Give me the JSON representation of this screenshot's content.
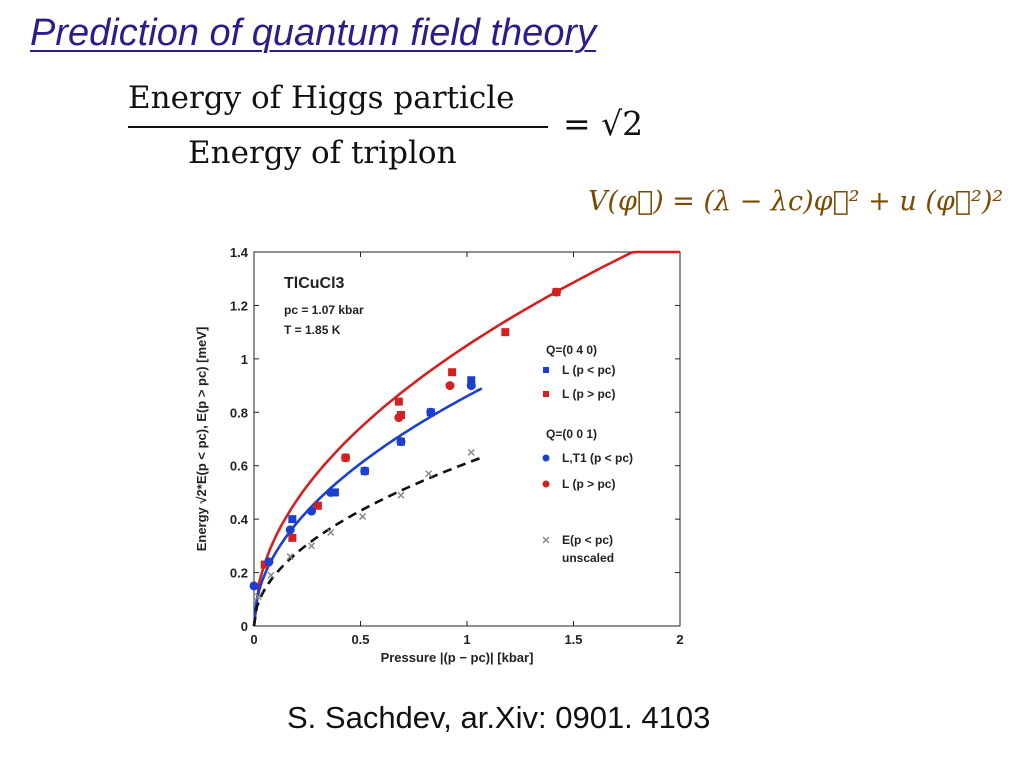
{
  "slide": {
    "title": "Prediction of quantum field theory",
    "formula_numerator": "Energy of Higgs particle",
    "formula_denominator": "Energy of triplon",
    "formula_equals": "= √2",
    "potential": "V(φ⃗) = (λ − λc)φ⃗² + u (φ⃗²)²",
    "citation": "S. Sachdev, ar.Xiv: 0901. 4103"
  },
  "chart_data": {
    "type": "scatter",
    "xlabel": "Pressure |(p − pc)| [kbar]",
    "ylabel": "Energy √2*E(p < pc), E(p > pc) [meV]",
    "xlim": [
      0,
      2
    ],
    "ylim": [
      0,
      1.4
    ],
    "x_ticks": [
      "0",
      "0.5",
      "1",
      "1.5",
      "2"
    ],
    "y_ticks": [
      "0",
      "0.2",
      "0.4",
      "0.6",
      "0.8",
      "1",
      "1.2",
      "1.4"
    ],
    "grid": false,
    "annotations": [
      "TlCuCl3",
      "pc = 1.07 kbar",
      "T = 1.85 K"
    ],
    "legend_header_1": "Q=(0 4 0)",
    "legend_header_2": "Q=(0 0 1)",
    "series": [
      {
        "name": "L (p < pc)",
        "marker": "square",
        "color": "#1a3fd1",
        "x": [
          0.18,
          0.38,
          0.52,
          0.69,
          0.83,
          1.02
        ],
        "y": [
          0.4,
          0.5,
          0.58,
          0.69,
          0.8,
          0.92
        ]
      },
      {
        "name": "L (p > pc)",
        "marker": "square",
        "color": "#d42020",
        "x": [
          0.05,
          0.18,
          0.3,
          0.43,
          0.68,
          0.69,
          0.93,
          1.18,
          1.42
        ],
        "y": [
          0.23,
          0.33,
          0.45,
          0.63,
          0.84,
          0.79,
          0.95,
          1.1,
          1.25
        ]
      },
      {
        "name": "L,T1 (p < pc)",
        "marker": "circle",
        "color": "#1a3fd1",
        "x": [
          0.0,
          0.07,
          0.17,
          0.27,
          0.36,
          0.52,
          0.69,
          0.83,
          1.02
        ],
        "y": [
          0.15,
          0.24,
          0.36,
          0.43,
          0.5,
          0.58,
          0.69,
          0.8,
          0.9
        ]
      },
      {
        "name": "L (p > pc)",
        "marker": "circle",
        "color": "#d42020",
        "x": [
          0.43,
          0.68,
          0.92,
          1.42
        ],
        "y": [
          0.63,
          0.78,
          0.9,
          1.25
        ]
      },
      {
        "name": "E(p < pc) unscaled",
        "marker": "cross",
        "color": "#888888",
        "x": [
          0.02,
          0.08,
          0.17,
          0.27,
          0.36,
          0.51,
          0.69,
          0.82,
          1.02
        ],
        "y": [
          0.11,
          0.19,
          0.26,
          0.3,
          0.35,
          0.41,
          0.49,
          0.57,
          0.65
        ]
      }
    ],
    "curves": [
      {
        "name": "red fit",
        "style": "solid",
        "color": "#d42020",
        "x_max": 2.0,
        "coef": 1.05
      },
      {
        "name": "blue fit",
        "style": "solid",
        "color": "#1a3fd1",
        "x_max": 1.07,
        "coef": 0.86
      },
      {
        "name": "black fit",
        "style": "dashed",
        "color": "#111111",
        "x_max": 1.07,
        "coef": 0.61
      }
    ]
  }
}
